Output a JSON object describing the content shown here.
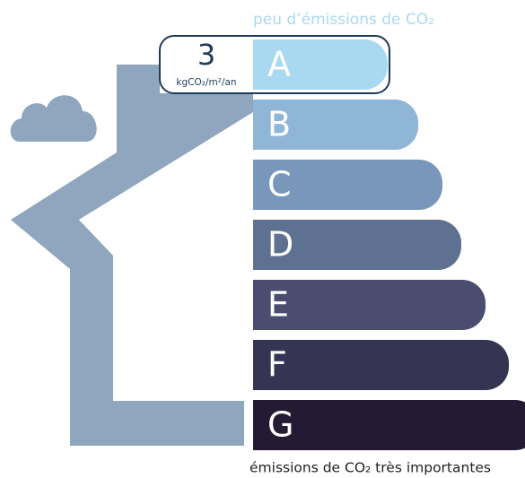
{
  "top_label": "peu d’émissions de CO₂",
  "bottom_label": "émissions de CO₂ très importantes",
  "value_box": {
    "value": 3,
    "unit": "kgCO₂/m²/an"
  },
  "classes": [
    {
      "letter": "A",
      "color": "#a9d9f1"
    },
    {
      "letter": "B",
      "color": "#8fb6d6"
    },
    {
      "letter": "C",
      "color": "#7897ba"
    },
    {
      "letter": "D",
      "color": "#5e7191"
    },
    {
      "letter": "E",
      "color": "#4a4c70"
    },
    {
      "letter": "F",
      "color": "#353453"
    },
    {
      "letter": "G",
      "color": "#241a34"
    }
  ]
}
